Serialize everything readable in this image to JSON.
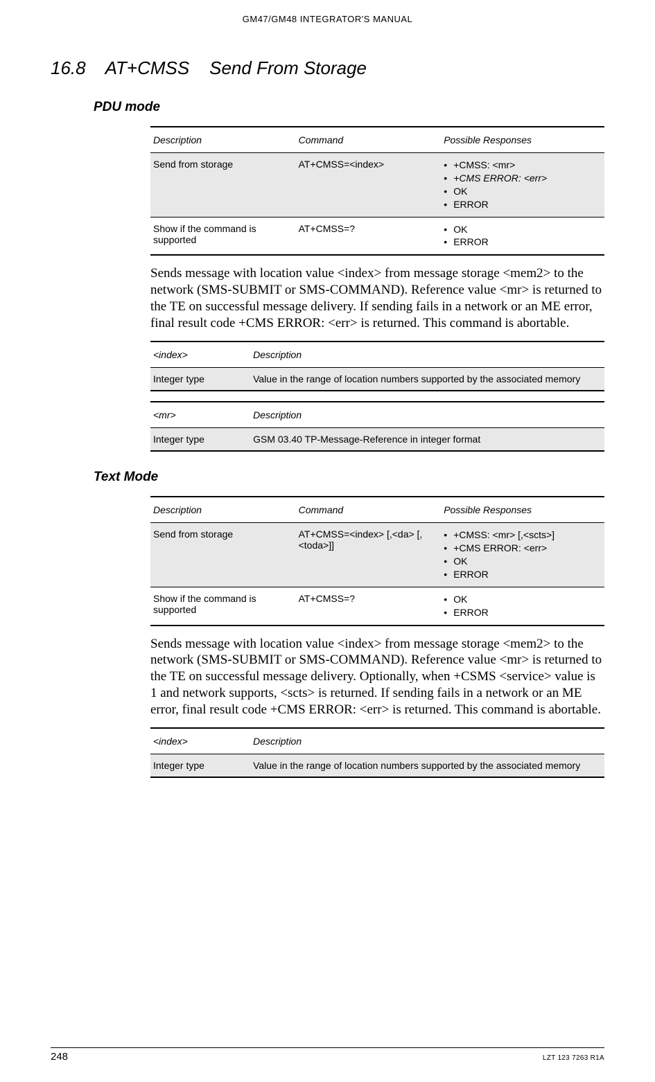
{
  "header": "GM47/GM48 INTEGRATOR'S MANUAL",
  "section": {
    "num": "16.8",
    "cmd": "AT+CMSS",
    "title": "Send From Storage"
  },
  "pdu": {
    "heading": "PDU mode",
    "table": {
      "cols": [
        "Description",
        "Command",
        "Possible Responses"
      ],
      "rows": [
        {
          "shaded": true,
          "desc": "Send from storage",
          "cmd": "AT+CMSS=<index>",
          "resp": [
            {
              "text": "+CMSS: <mr>",
              "italic": false
            },
            {
              "text": "+CMS ERROR: <err>",
              "italic": true
            },
            {
              "text": "OK",
              "italic": false
            },
            {
              "text": "ERROR",
              "italic": false
            }
          ]
        },
        {
          "shaded": false,
          "desc": "Show if the command is supported",
          "cmd": "AT+CMSS=?",
          "resp": [
            {
              "text": "OK",
              "italic": false
            },
            {
              "text": "ERROR",
              "italic": false
            }
          ]
        }
      ]
    },
    "body": "Sends message with location value <index> from message storage <mem2> to the network (SMS-SUBMIT or SMS-COMMAND). Reference value <mr> is returned to the TE on successful message delivery. If sending fails in a network or an ME error, final result code +CMS ERROR: <err> is returned. This command is abortable.",
    "paramTables": [
      {
        "h1": "<index>",
        "h2": "Description",
        "c1": "Integer type",
        "c2": "Value in the range of location numbers supported by the associated memory"
      },
      {
        "h1": "<mr>",
        "h2": "Description",
        "c1": "Integer type",
        "c2": "GSM 03.40 TP-Message-Reference in integer format"
      }
    ]
  },
  "text": {
    "heading": "Text Mode",
    "table": {
      "cols": [
        "Description",
        "Command",
        "Possible Responses"
      ],
      "rows": [
        {
          "shaded": true,
          "desc": "Send from storage",
          "cmd": "AT+CMSS=<index> [,<da> [,<toda>]]",
          "resp": [
            {
              "text": "+CMSS: <mr> [,<scts>]",
              "italic": false
            },
            {
              "text": "+CMS ERROR: <err>",
              "italic": false
            },
            {
              "text": "OK",
              "italic": false
            },
            {
              "text": "ERROR",
              "italic": false
            }
          ]
        },
        {
          "shaded": false,
          "desc": "Show if the command is supported",
          "cmd": "AT+CMSS=?",
          "resp": [
            {
              "text": "OK",
              "italic": false
            },
            {
              "text": "ERROR",
              "italic": false
            }
          ]
        }
      ]
    },
    "body": "Sends message with location value <index> from message storage <mem2> to the network (SMS-SUBMIT or SMS-COMMAND). Reference value <mr> is returned to the TE on successful message delivery. Optionally, when +CSMS <service> value is 1 and network supports, <scts> is returned. If sending fails in a network or an ME error, final result code +CMS ERROR: <err> is returned. This command is abortable.",
    "paramTables": [
      {
        "h1": "<index>",
        "h2": "Description",
        "c1": "Integer type",
        "c2": "Value in the range of location numbers supported by the associated memory"
      }
    ]
  },
  "footer": {
    "page": "248",
    "docid": "LZT 123 7263 R1A"
  },
  "layout": {
    "col3": [
      32,
      32,
      36
    ],
    "col2": [
      22,
      78
    ]
  }
}
